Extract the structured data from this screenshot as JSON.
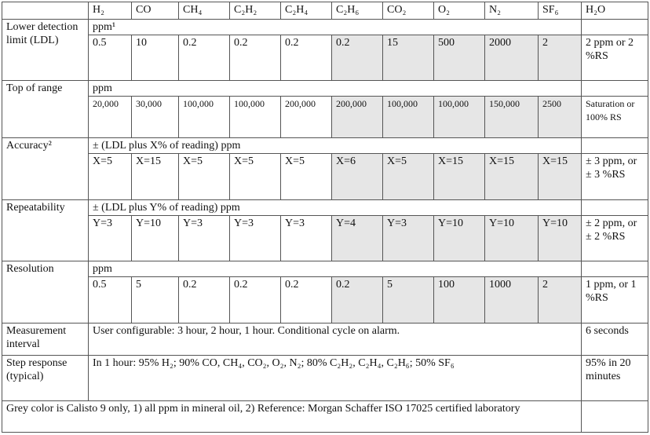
{
  "header": {
    "columns": [
      "H₂",
      "CO",
      "CH₄",
      "C₂H₂",
      "C₂H₄",
      "C₂H₆",
      "CO₂",
      "O₂",
      "N₂",
      "SF₆",
      "H₂O"
    ]
  },
  "rows": [
    {
      "label": "Lower detection limit (LDL)",
      "unit": "ppm¹",
      "values": [
        "0.5",
        "10",
        "0.2",
        "0.2",
        "0.2",
        "0.2",
        "15",
        "500",
        "2000",
        "2"
      ],
      "h2o": "2 ppm or 2 %RS"
    },
    {
      "label": "Top of range",
      "unit": "ppm",
      "values": [
        "20,000",
        "30,000",
        "100,000",
        "100,000",
        "200,000",
        "200,000",
        "100,000",
        "100,000",
        "150,000",
        "2500"
      ],
      "h2o": "Saturation or 100% RS",
      "small": true
    },
    {
      "label": "Accuracy²",
      "unit": "± (LDL plus X% of reading) ppm",
      "values": [
        "X=5",
        "X=15",
        "X=5",
        "X=5",
        "X=5",
        "X=6",
        "X=5",
        "X=15",
        "X=15",
        "X=15"
      ],
      "h2o": "± 3 ppm, or ± 3 %RS"
    },
    {
      "label": "Repeatability",
      "unit": "± (LDL plus Y% of reading) ppm",
      "values": [
        "Y=3",
        "Y=10",
        "Y=3",
        "Y=3",
        "Y=3",
        "Y=4",
        "Y=3",
        "Y=10",
        "Y=10",
        "Y=10"
      ],
      "h2o": "± 2 ppm, or ± 2 %RS"
    },
    {
      "label": "Resolution",
      "unit": "ppm",
      "values": [
        "0.5",
        "5",
        "0.2",
        "0.2",
        "0.2",
        "0.2",
        "5",
        "100",
        "1000",
        "2"
      ],
      "h2o": "1 ppm, or 1 %RS"
    }
  ],
  "interval": {
    "label": "Measurement interval",
    "text": "User configurable: 3 hour, 2 hour, 1 hour. Conditional cycle on alarm.",
    "h2o": "6 seconds"
  },
  "step": {
    "label": "Step response (typical)",
    "text": "In 1 hour: 95% H₂; 90% CO, CH₄, CO₂, O₂, N₂; 80% C₂H₂, C₂H₄, C₂H₆; 50% SF₆",
    "h2o": "95% in 20 minutes"
  },
  "footer": "Grey color is Calisto 9 only, 1) all ppm in mineral oil, 2) Reference: Morgan Schaffer ISO 17025 certified laboratory"
}
